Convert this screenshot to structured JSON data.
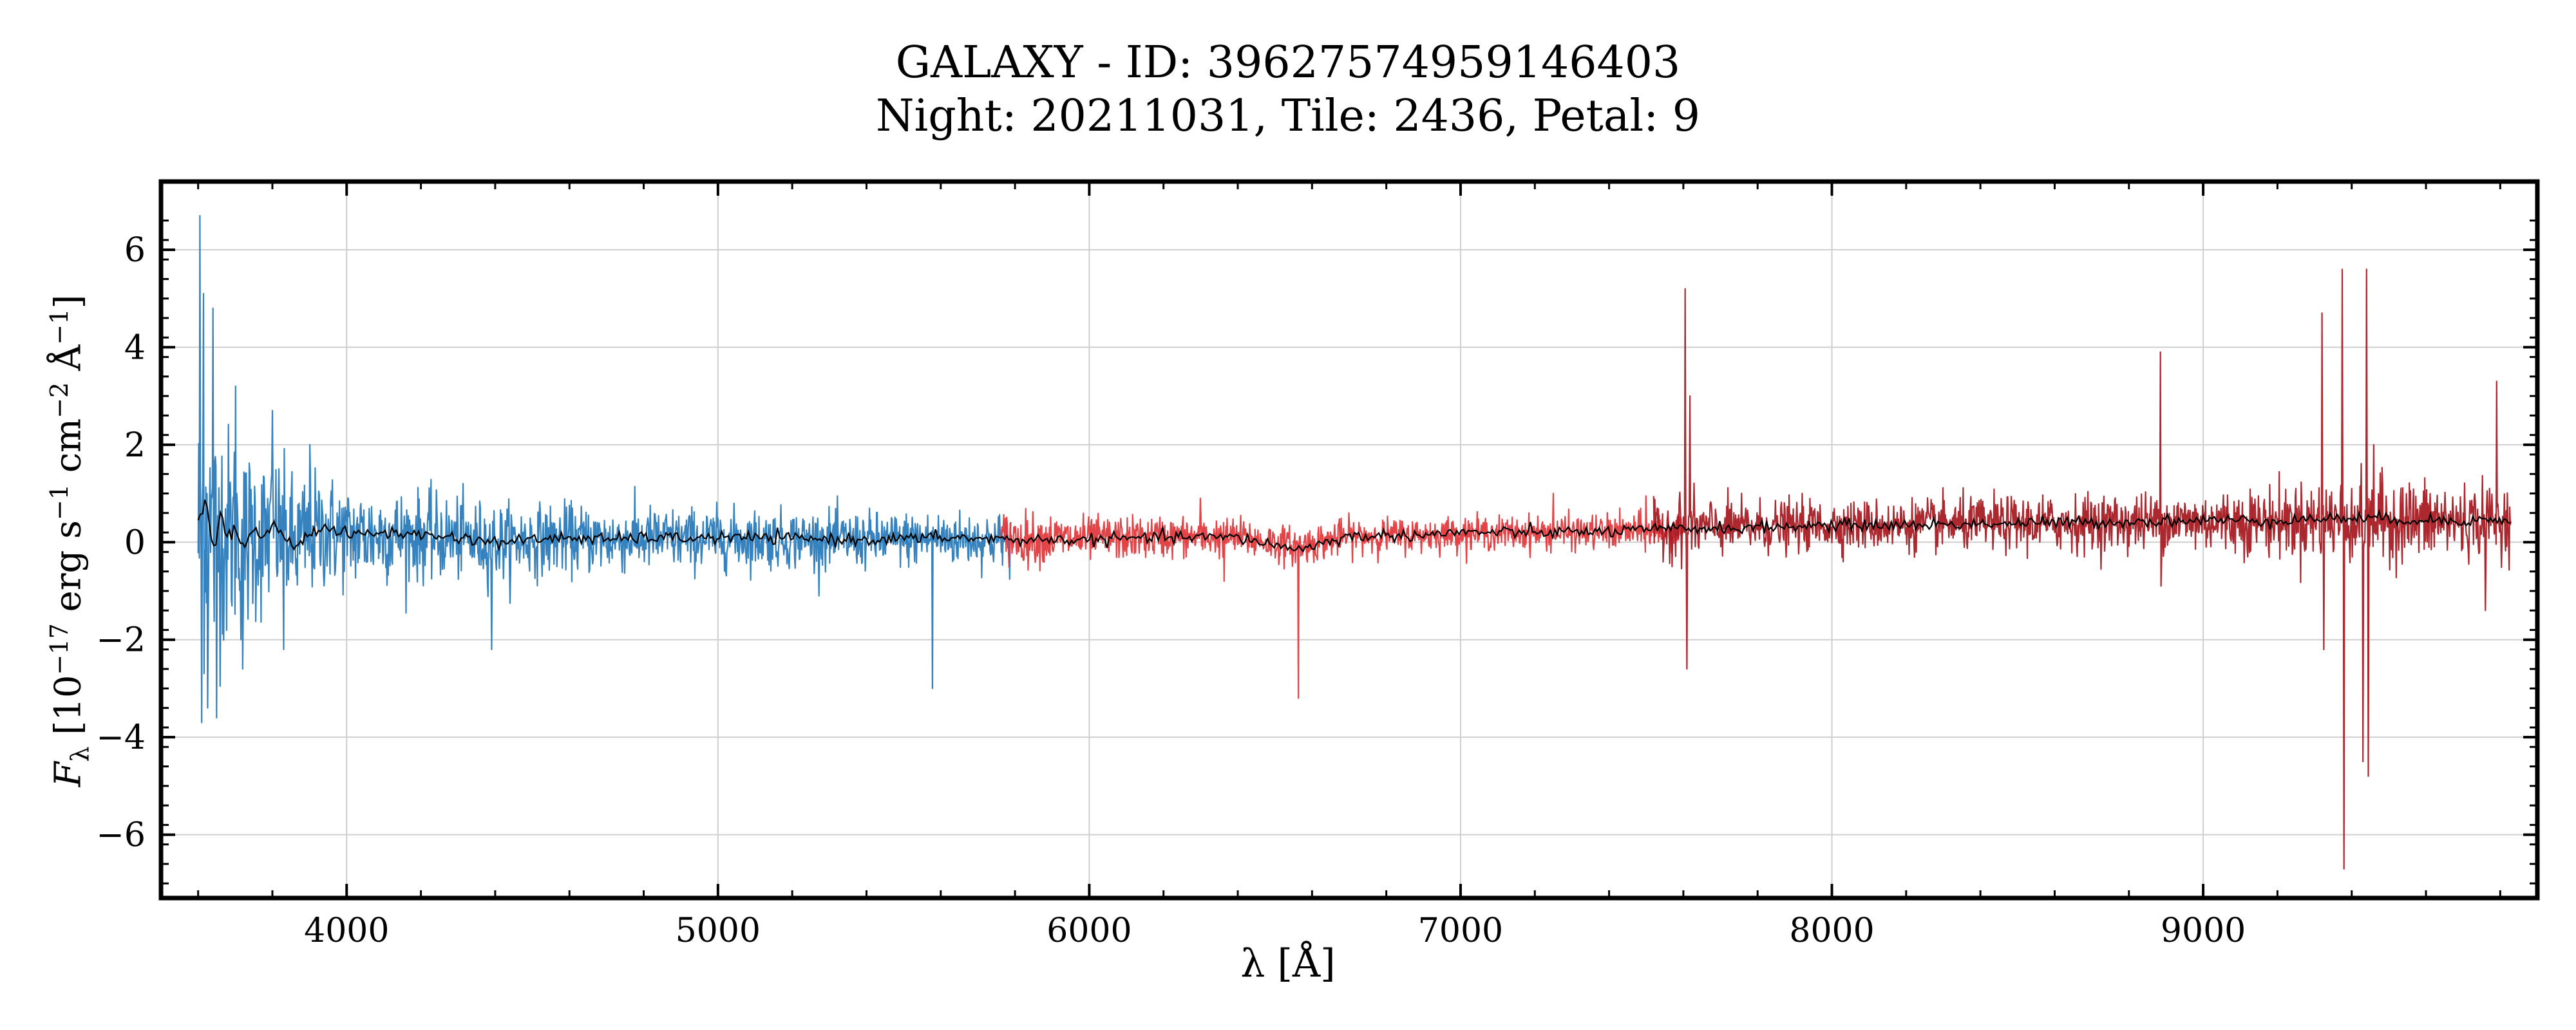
{
  "chart_data": {
    "type": "line",
    "title": "GALAXY - ID: 39627574959146403",
    "subtitle": "Night: 20211031, Tile: 2436, Petal: 9",
    "xlabel": "λ [Å]",
    "ylabel": {
      "symbol": "F",
      "subscript": "λ",
      "units_prefix": "[10",
      "exp1": "−17",
      "erg": " erg s",
      "exp2": "−1",
      "cm": " cm",
      "exp3": "−2",
      "ang": " Å",
      "exp4": "−1",
      "close": "]"
    },
    "xlim": [
      3500,
      9900
    ],
    "ylim": [
      -7.3,
      7.4
    ],
    "xticks": [
      4000,
      5000,
      6000,
      7000,
      8000,
      9000
    ],
    "xtick_labels": [
      "4000",
      "5000",
      "6000",
      "7000",
      "8000",
      "9000"
    ],
    "yticks": [
      -6,
      -4,
      -2,
      0,
      2,
      4,
      6
    ],
    "ytick_labels": [
      "−6",
      "−4",
      "−2",
      "0",
      "2",
      "4",
      "6"
    ],
    "grid": true,
    "colors": {
      "b_arm": "#2b7bba",
      "r_arm": "#e03a3e",
      "z_arm": "#a81c24",
      "model": "#000000",
      "grid": "#cfcfcf"
    },
    "series": [
      {
        "arm": "b",
        "x_range": [
          3600,
          5790
        ],
        "noise_envelope": [
          [
            3600,
            3.2
          ],
          [
            3650,
            2.4
          ],
          [
            3700,
            1.9
          ],
          [
            3800,
            1.4
          ],
          [
            3900,
            1.15
          ],
          [
            4000,
            0.95
          ],
          [
            4200,
            0.8
          ],
          [
            4500,
            0.65
          ],
          [
            5000,
            0.55
          ],
          [
            5500,
            0.5
          ],
          [
            5790,
            0.5
          ]
        ],
        "baseline": 0.0,
        "features": [
          [
            3605,
            6.7
          ],
          [
            3610,
            -3.7
          ],
          [
            3615,
            5.1
          ],
          [
            3625,
            -3.4
          ],
          [
            3640,
            4.8
          ],
          [
            3650,
            -3.6
          ],
          [
            3700,
            3.2
          ],
          [
            3720,
            -2.6
          ],
          [
            3800,
            2.7
          ],
          [
            3830,
            -2.2
          ],
          [
            3900,
            2.0
          ],
          [
            4390,
            -2.2
          ],
          [
            5577,
            -3.0
          ]
        ]
      },
      {
        "arm": "r",
        "x_range": [
          5760,
          7600
        ],
        "noise_envelope": [
          [
            5760,
            0.5
          ],
          [
            6000,
            0.4
          ],
          [
            6500,
            0.35
          ],
          [
            7000,
            0.3
          ],
          [
            7500,
            0.33
          ],
          [
            7600,
            0.35
          ]
        ],
        "baseline": 0.15,
        "features": [
          [
            6563,
            -3.2
          ],
          [
            6300,
            0.9
          ],
          [
            6363,
            -0.8
          ],
          [
            7250,
            1.0
          ],
          [
            7500,
            0.95
          ]
        ]
      },
      {
        "arm": "z",
        "x_range": [
          7520,
          9830
        ],
        "noise_envelope": [
          [
            7520,
            0.45
          ],
          [
            7600,
            0.6
          ],
          [
            7700,
            0.5
          ],
          [
            8000,
            0.45
          ],
          [
            8500,
            0.5
          ],
          [
            9000,
            0.55
          ],
          [
            9300,
            0.7
          ],
          [
            9500,
            0.8
          ],
          [
            9830,
            0.6
          ]
        ],
        "baseline": 0.35,
        "features": [
          [
            7605,
            5.2
          ],
          [
            7610,
            -2.6
          ],
          [
            7618,
            3.0
          ],
          [
            8885,
            3.9
          ],
          [
            8886,
            -0.9
          ],
          [
            9320,
            4.7
          ],
          [
            9325,
            -2.2
          ],
          [
            9375,
            5.6
          ],
          [
            9380,
            -6.7
          ],
          [
            9400,
            1.1
          ],
          [
            9430,
            -4.5
          ],
          [
            9440,
            5.6
          ],
          [
            9445,
            -4.8
          ],
          [
            9460,
            2.0
          ],
          [
            9760,
            -1.4
          ],
          [
            9790,
            3.3
          ]
        ]
      }
    ],
    "model": {
      "points": [
        [
          3600,
          0.4
        ],
        [
          3620,
          0.9
        ],
        [
          3640,
          -0.2
        ],
        [
          3660,
          0.5
        ],
        [
          3680,
          0.1
        ],
        [
          3700,
          0.3
        ],
        [
          3720,
          -0.1
        ],
        [
          3750,
          0.25
        ],
        [
          3780,
          0.1
        ],
        [
          3800,
          0.35
        ],
        [
          3830,
          0.15
        ],
        [
          3860,
          -0.1
        ],
        [
          3900,
          0.2
        ],
        [
          3950,
          0.3
        ],
        [
          4000,
          0.15
        ],
        [
          4100,
          0.2
        ],
        [
          4200,
          0.15
        ],
        [
          4300,
          0.1
        ],
        [
          4400,
          0.0
        ],
        [
          4500,
          0.05
        ],
        [
          4600,
          0.1
        ],
        [
          4700,
          0.05
        ],
        [
          4800,
          0.1
        ],
        [
          4900,
          0.08
        ],
        [
          5000,
          0.1
        ],
        [
          5200,
          0.08
        ],
        [
          5400,
          0.05
        ],
        [
          5600,
          0.1
        ],
        [
          5800,
          0.05
        ],
        [
          6000,
          0.05
        ],
        [
          6200,
          0.1
        ],
        [
          6400,
          0.1
        ],
        [
          6560,
          -0.15
        ],
        [
          6700,
          0.12
        ],
        [
          6900,
          0.15
        ],
        [
          7000,
          0.2
        ],
        [
          7200,
          0.2
        ],
        [
          7400,
          0.22
        ],
        [
          7600,
          0.28
        ],
        [
          7800,
          0.3
        ],
        [
          8000,
          0.35
        ],
        [
          8200,
          0.35
        ],
        [
          8400,
          0.38
        ],
        [
          8600,
          0.4
        ],
        [
          8800,
          0.42
        ],
        [
          9000,
          0.45
        ],
        [
          9200,
          0.45
        ],
        [
          9400,
          0.5
        ],
        [
          9600,
          0.45
        ],
        [
          9830,
          0.45
        ]
      ]
    }
  }
}
